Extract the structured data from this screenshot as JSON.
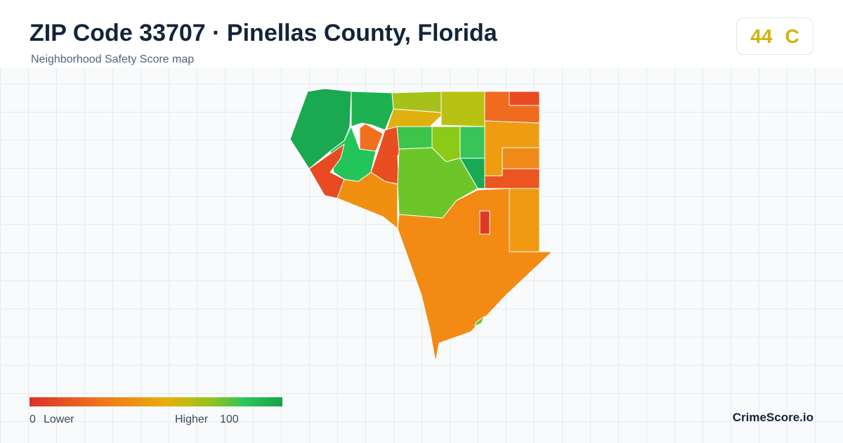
{
  "header": {
    "title": "ZIP Code 33707 · Pinellas County, Florida",
    "subtitle": "Neighborhood Safety Score map"
  },
  "score": {
    "value": "44",
    "grade": "C"
  },
  "legend": {
    "min": "0",
    "low_label": "Lower",
    "high_label": "Higher",
    "max": "100"
  },
  "brand": "CrimeScore.io"
}
